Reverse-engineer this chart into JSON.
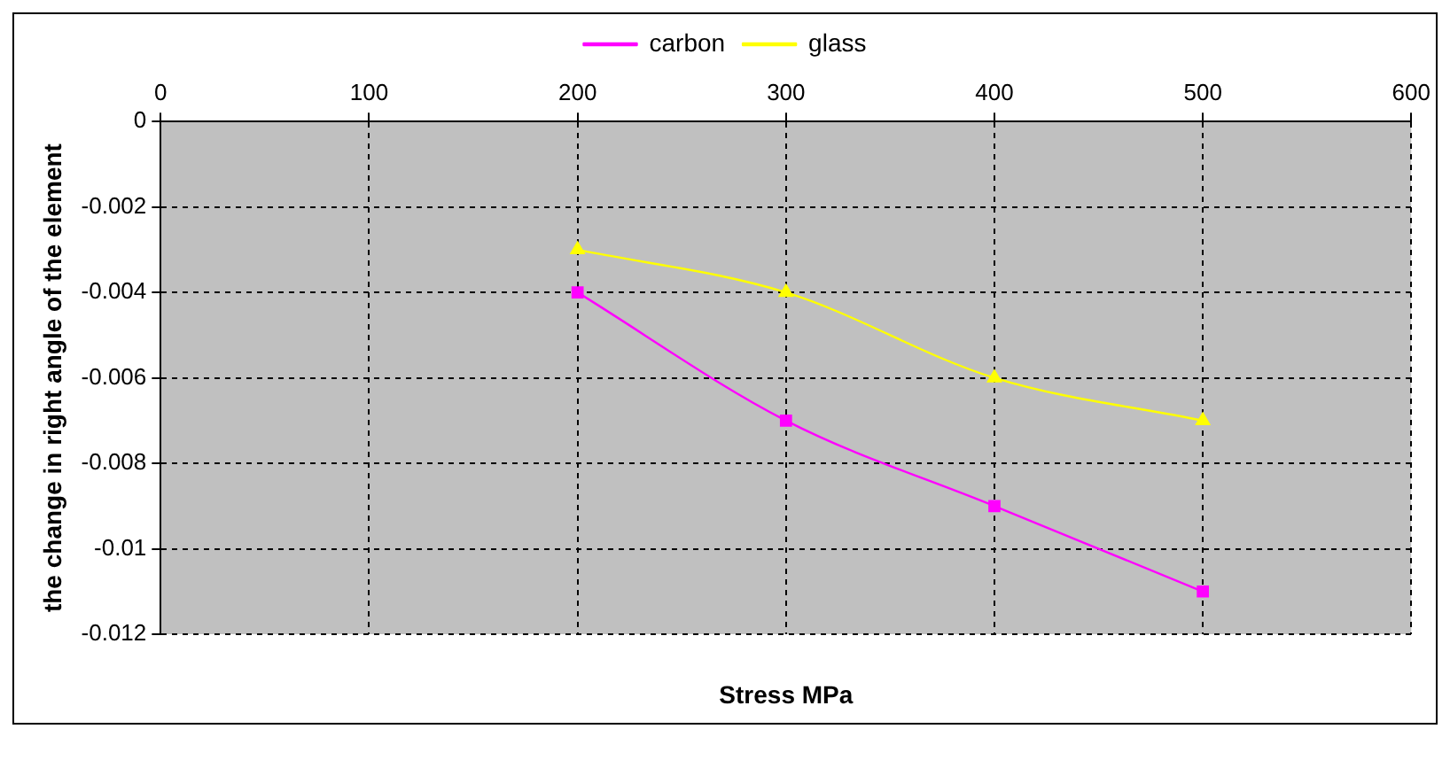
{
  "chart_data": {
    "type": "line",
    "xlabel": "Stress MPa",
    "ylabel": "the change in right angle of the element",
    "x": [
      200,
      300,
      400,
      500
    ],
    "series": [
      {
        "name": "carbon",
        "color": "#ff00ff",
        "marker": "square",
        "values": [
          -0.004,
          -0.007,
          -0.009,
          -0.011
        ]
      },
      {
        "name": "glass",
        "color": "#ffff00",
        "marker": "triangle",
        "values": [
          -0.003,
          -0.004,
          -0.006,
          -0.007
        ]
      }
    ],
    "xlim": [
      0,
      600
    ],
    "xticks": [
      0,
      100,
      200,
      300,
      400,
      500,
      600
    ],
    "ylim": [
      -0.012,
      0
    ],
    "yticks": [
      -0.012,
      -0.01,
      -0.008,
      -0.006,
      -0.004,
      -0.002,
      0
    ],
    "grid": true,
    "legend": "top",
    "line_style": "solid"
  }
}
